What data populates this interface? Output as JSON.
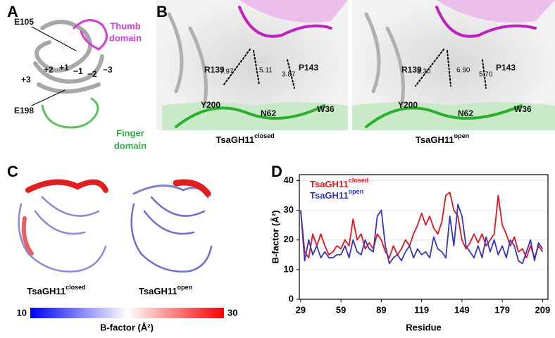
{
  "panel_labels": [
    "A",
    "B",
    "C",
    "D"
  ],
  "panel_a": {
    "residues": [
      "E105",
      "E198"
    ],
    "subsites": [
      "+3",
      "+2",
      "+1",
      "−1",
      "−2",
      "−3"
    ],
    "thumb": [
      "Thumb",
      "domain"
    ],
    "finger": [
      "Finger",
      "domain"
    ]
  },
  "panel_b": {
    "closed": {
      "residues": [
        "R139",
        "P143",
        "Y200",
        "N62",
        "W36"
      ],
      "distances": [
        "7.97",
        "5.11",
        "3.87"
      ],
      "caption": {
        "base": "TsaGH11",
        "sup": "closed"
      }
    },
    "open": {
      "residues": [
        "R139",
        "P143",
        "Y200",
        "N62",
        "W36"
      ],
      "distances": [
        "8.30",
        "6.90",
        "5.70"
      ],
      "caption": {
        "base": "TsaGH11",
        "sup": "open"
      }
    }
  },
  "panel_c": {
    "captions": [
      {
        "base": "TsaGH11",
        "sup": "closed"
      },
      {
        "base": "TsaGH11",
        "sup": "open"
      }
    ],
    "colorbar": {
      "min": 10,
      "max": 30,
      "label": "B-factor (Å²)",
      "colors": [
        "#0000ff",
        "#ffffff",
        "#ff0000"
      ]
    }
  },
  "chart_data": {
    "type": "line",
    "xlabel": "Residue",
    "ylabel": "B-factor (Å²)",
    "x": [
      29,
      32,
      35,
      38,
      41,
      44,
      47,
      50,
      53,
      56,
      59,
      62,
      65,
      68,
      71,
      74,
      77,
      80,
      83,
      86,
      89,
      92,
      95,
      98,
      101,
      104,
      107,
      110,
      113,
      116,
      119,
      122,
      125,
      128,
      131,
      134,
      137,
      140,
      143,
      146,
      149,
      152,
      155,
      158,
      161,
      164,
      167,
      170,
      173,
      176,
      179,
      182,
      185,
      188,
      191,
      194,
      197,
      200,
      203,
      206,
      209
    ],
    "series": [
      {
        "name": "TsaGH11",
        "name_sup": "closed",
        "color": "#e8131b",
        "values": [
          30,
          16,
          14,
          22,
          18,
          22,
          18,
          15,
          16,
          18,
          17,
          20,
          18,
          27,
          20,
          22,
          17,
          19,
          17,
          22,
          20,
          16,
          14,
          18,
          15,
          17,
          20,
          18,
          22,
          25,
          29,
          25,
          28,
          24,
          22,
          26,
          35,
          36,
          30,
          28,
          20,
          17,
          19,
          22,
          19,
          22,
          18,
          20,
          22,
          35,
          25,
          22,
          18,
          21,
          16,
          17,
          14,
          18,
          14,
          18,
          16
        ]
      },
      {
        "name": "TsaGH11",
        "name_sup": "open",
        "color": "#3535c0",
        "values": [
          30,
          13,
          20,
          15,
          18,
          14,
          16,
          14,
          14,
          15,
          15,
          18,
          14,
          20,
          16,
          15,
          20,
          17,
          16,
          28,
          30,
          18,
          12,
          14,
          15,
          13,
          16,
          18,
          14,
          17,
          15,
          16,
          14,
          21,
          17,
          16,
          14,
          28,
          18,
          32,
          28,
          18,
          16,
          14,
          18,
          14,
          21,
          16,
          20,
          15,
          18,
          14,
          20,
          18,
          13,
          12,
          16,
          20,
          13,
          19,
          17
        ]
      }
    ],
    "xlim": [
      28,
      213
    ],
    "ylim": [
      0,
      42
    ],
    "xticks": [
      29,
      59,
      89,
      119,
      149,
      179,
      209
    ],
    "yticks": [
      0,
      10,
      20,
      30,
      40
    ],
    "grid": true,
    "legend": "top-left"
  }
}
